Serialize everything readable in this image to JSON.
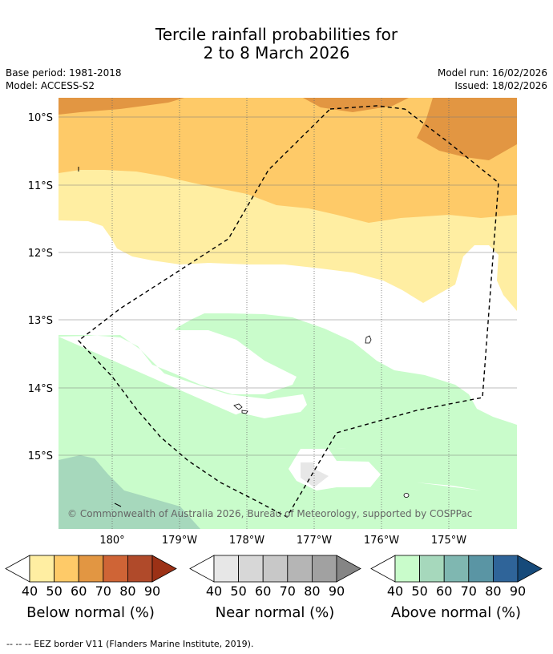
{
  "title": {
    "line1": "Tercile rainfall probabilities for",
    "line2": "2 to 8 March 2026"
  },
  "meta": {
    "base_period": "Base period: 1981-2018",
    "model": "Model: ACCESS-S2",
    "model_run": "Model run: 16/02/2026",
    "issued": "Issued: 18/02/2026"
  },
  "map": {
    "lat_ticks": [
      "10°S",
      "11°S",
      "12°S",
      "13°S",
      "14°S",
      "15°S"
    ],
    "lon_ticks": [
      "180°",
      "179°W",
      "178°W",
      "177°W",
      "176°W",
      "175°W"
    ],
    "copyright": "© Commonwealth of Australia 2026, Bureau of Meteorology, supported by COSPPac",
    "eez_line_style": "dashed"
  },
  "colorbars": [
    {
      "title": "Below normal (%)",
      "labels": [
        "40",
        "50",
        "60",
        "70",
        "80",
        "90"
      ],
      "colors": [
        "#ffeea2",
        "#feca68",
        "#e29642",
        "#cf6436",
        "#b04a2a",
        "#9c3116"
      ]
    },
    {
      "title": "Near normal (%)",
      "labels": [
        "40",
        "50",
        "60",
        "70",
        "80",
        "90"
      ],
      "colors": [
        "#e7e7e7",
        "#d7d7d7",
        "#c8c8c8",
        "#b5b5b5",
        "#a1a1a1",
        "#858585"
      ]
    },
    {
      "title": "Above normal (%)",
      "labels": [
        "40",
        "50",
        "60",
        "70",
        "80",
        "90"
      ],
      "colors": [
        "#c9fccb",
        "#a6d8bc",
        "#7fb7b1",
        "#5a95a4",
        "#2f6499",
        "#164a7a"
      ]
    }
  ],
  "footer": "--  --  -- EEZ border V11 (Flanders Marine Institute, 2019)."
}
